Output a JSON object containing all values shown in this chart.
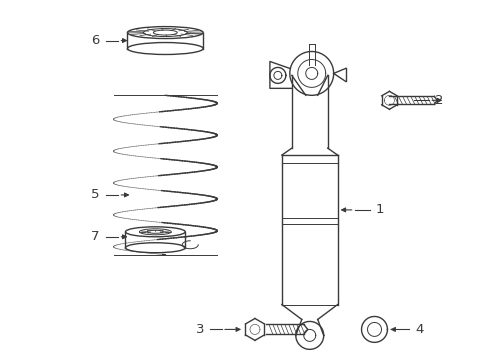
{
  "background_color": "#ffffff",
  "line_color": "#3a3a3a",
  "fig_width": 4.89,
  "fig_height": 3.6,
  "dpi": 100
}
